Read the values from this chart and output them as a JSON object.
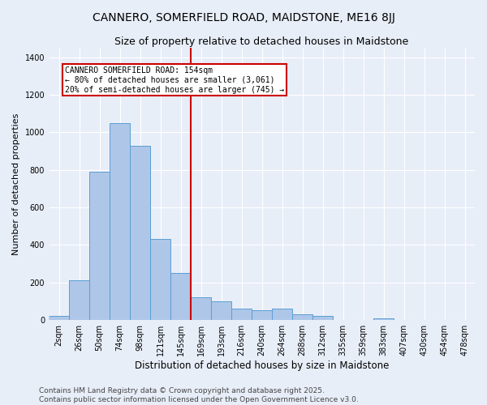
{
  "title": "CANNERO, SOMERFIELD ROAD, MAIDSTONE, ME16 8JJ",
  "subtitle": "Size of property relative to detached houses in Maidstone",
  "xlabel": "Distribution of detached houses by size in Maidstone",
  "ylabel": "Number of detached properties",
  "bar_labels": [
    "2sqm",
    "26sqm",
    "50sqm",
    "74sqm",
    "98sqm",
    "121sqm",
    "145sqm",
    "169sqm",
    "193sqm",
    "216sqm",
    "240sqm",
    "264sqm",
    "288sqm",
    "312sqm",
    "335sqm",
    "359sqm",
    "383sqm",
    "407sqm",
    "430sqm",
    "454sqm",
    "478sqm"
  ],
  "bar_values": [
    20,
    210,
    790,
    1050,
    930,
    430,
    250,
    120,
    100,
    60,
    50,
    60,
    30,
    20,
    0,
    0,
    10,
    0,
    0,
    0,
    0
  ],
  "bar_color": "#aec6e8",
  "bar_edge_color": "#5a9fd4",
  "bg_color": "#e8eef8",
  "grid_color": "#ffffff",
  "vline_position": 6.5,
  "vline_color": "#cc0000",
  "annotation_text": "CANNERO SOMERFIELD ROAD: 154sqm\n← 80% of detached houses are smaller (3,061)\n20% of semi-detached houses are larger (745) →",
  "annotation_box_color": "#ffffff",
  "annotation_box_edge": "#cc0000",
  "footer_text": "Contains HM Land Registry data © Crown copyright and database right 2025.\nContains public sector information licensed under the Open Government Licence v3.0.",
  "ylim": [
    0,
    1450
  ],
  "yticks": [
    0,
    200,
    400,
    600,
    800,
    1000,
    1200,
    1400
  ],
  "title_fontsize": 10,
  "subtitle_fontsize": 9,
  "xlabel_fontsize": 8.5,
  "ylabel_fontsize": 8,
  "tick_fontsize": 7,
  "footer_fontsize": 6.5
}
